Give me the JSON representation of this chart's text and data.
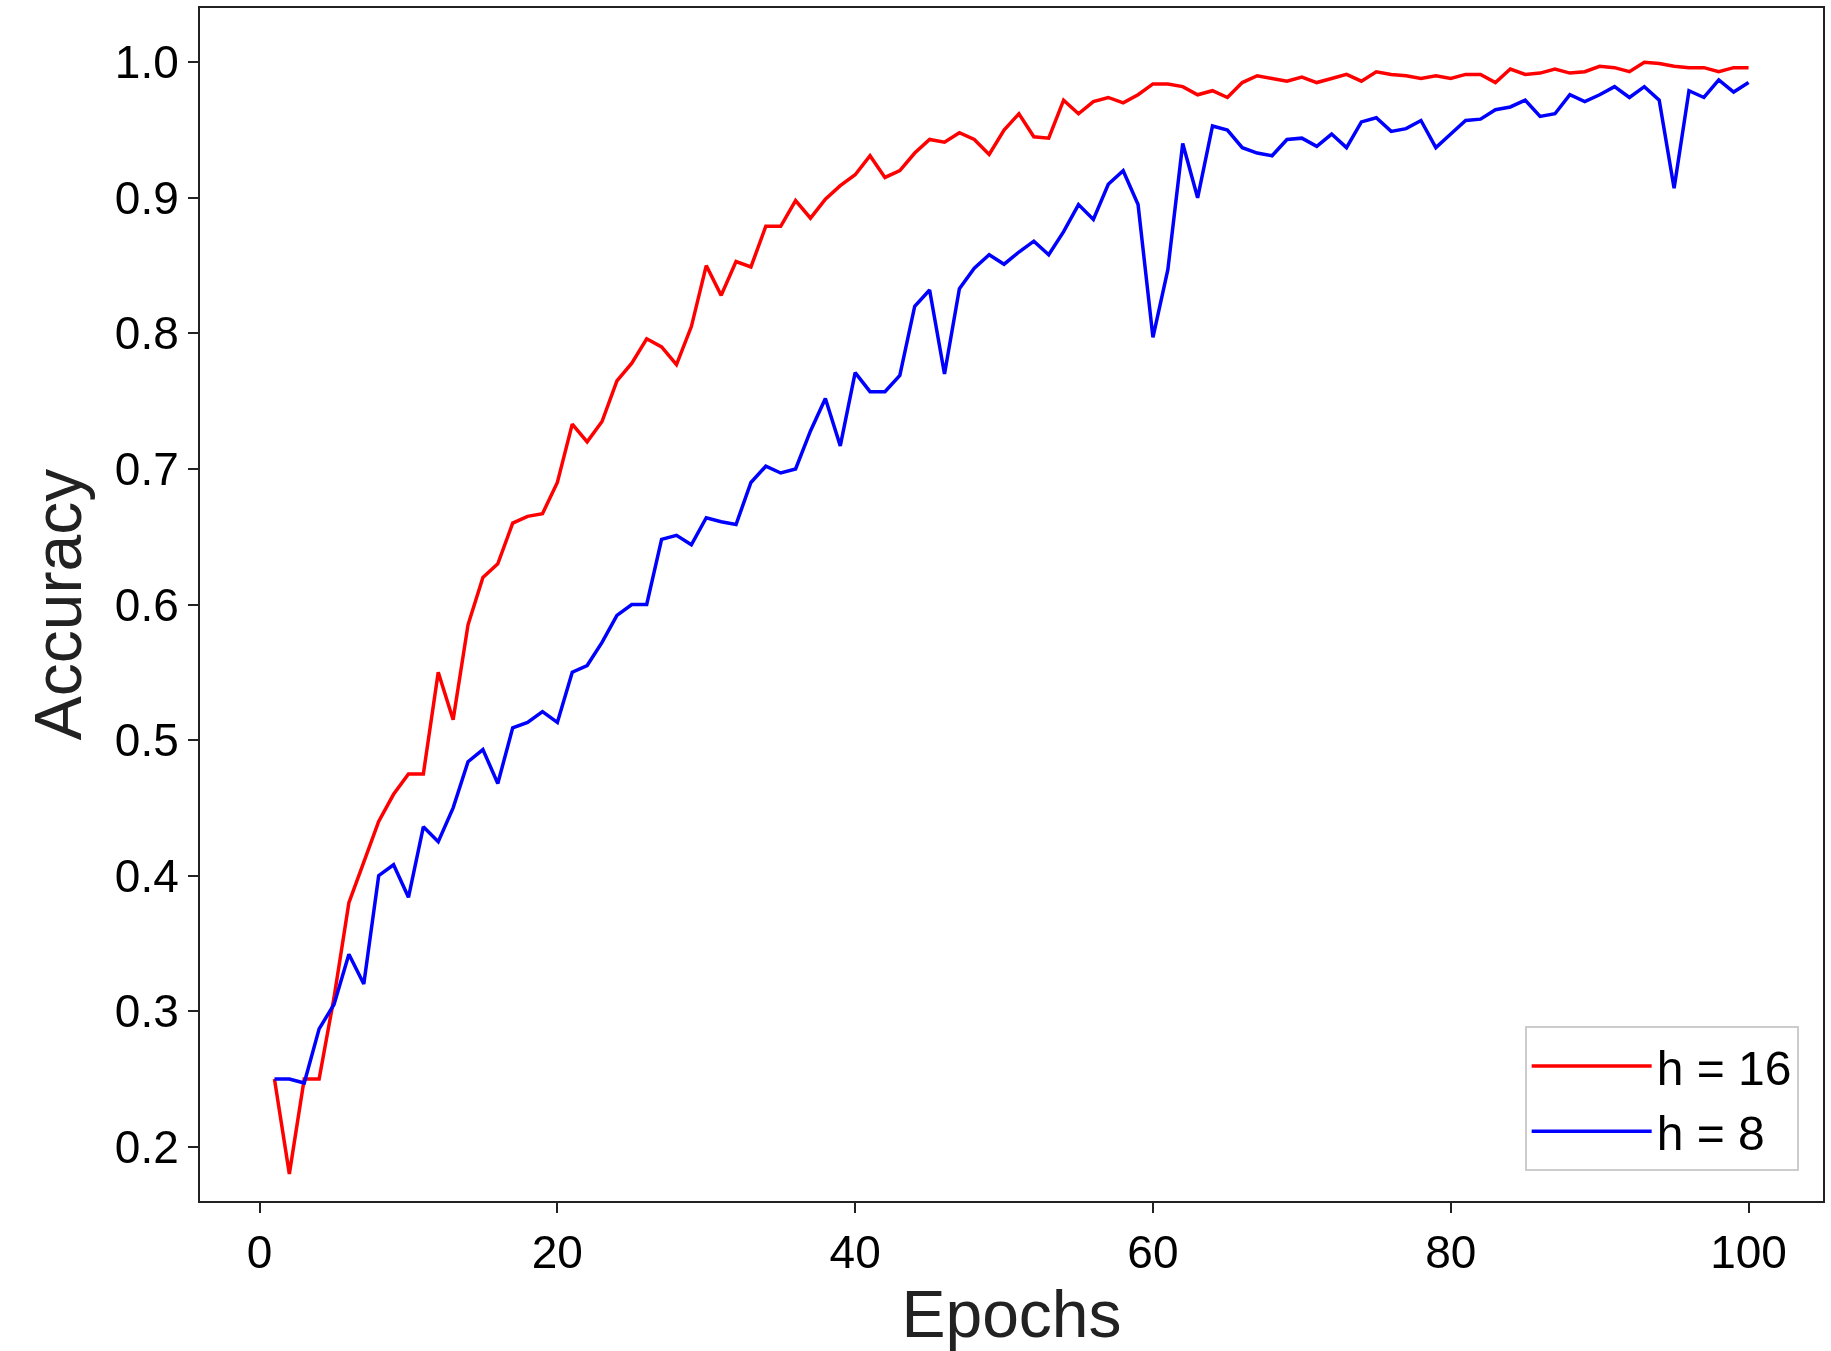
{
  "chart_data": {
    "type": "line",
    "xlabel": "Epochs",
    "ylabel": "Accuracy",
    "x": [
      1,
      2,
      3,
      4,
      5,
      6,
      7,
      8,
      9,
      10,
      11,
      12,
      13,
      14,
      15,
      16,
      17,
      18,
      19,
      20,
      21,
      22,
      23,
      24,
      25,
      26,
      27,
      28,
      29,
      30,
      31,
      32,
      33,
      34,
      35,
      36,
      37,
      38,
      39,
      40,
      41,
      42,
      43,
      44,
      45,
      46,
      47,
      48,
      49,
      50,
      51,
      52,
      53,
      54,
      55,
      56,
      57,
      58,
      59,
      60,
      61,
      62,
      63,
      64,
      65,
      66,
      67,
      68,
      69,
      70,
      71,
      72,
      73,
      74,
      75,
      76,
      77,
      78,
      79,
      80,
      81,
      82,
      83,
      84,
      85,
      86,
      87,
      88,
      89,
      90,
      91,
      92,
      93,
      94,
      95,
      96,
      97,
      98,
      99,
      100
    ],
    "series": [
      {
        "name": "h = 16",
        "color": "#ff0000",
        "values": [
          0.25,
          0.18,
          0.25,
          0.25,
          0.31,
          0.38,
          0.41,
          0.44,
          0.46,
          0.475,
          0.475,
          0.55,
          0.515,
          0.585,
          0.62,
          0.63,
          0.66,
          0.665,
          0.667,
          0.69,
          0.733,
          0.72,
          0.735,
          0.765,
          0.778,
          0.796,
          0.79,
          0.777,
          0.805,
          0.85,
          0.828,
          0.853,
          0.849,
          0.879,
          0.879,
          0.898,
          0.885,
          0.899,
          0.909,
          0.917,
          0.931,
          0.915,
          0.92,
          0.933,
          0.943,
          0.941,
          0.948,
          0.943,
          0.932,
          0.95,
          0.962,
          0.945,
          0.944,
          0.972,
          0.962,
          0.971,
          0.974,
          0.97,
          0.976,
          0.984,
          0.984,
          0.982,
          0.976,
          0.979,
          0.974,
          0.985,
          0.99,
          0.988,
          0.986,
          0.989,
          0.985,
          0.988,
          0.991,
          0.986,
          0.993,
          0.991,
          0.99,
          0.988,
          0.99,
          0.988,
          0.991,
          0.991,
          0.985,
          0.995,
          0.991,
          0.992,
          0.995,
          0.992,
          0.993,
          0.997,
          0.996,
          0.993,
          1.0,
          0.999,
          0.997,
          0.996,
          0.996,
          0.993,
          0.996,
          0.996
        ]
      },
      {
        "name": "h = 8",
        "color": "#0000ff",
        "values": [
          0.25,
          0.25,
          0.247,
          0.287,
          0.305,
          0.342,
          0.32,
          0.4,
          0.408,
          0.384,
          0.436,
          0.425,
          0.45,
          0.484,
          0.493,
          0.468,
          0.509,
          0.513,
          0.521,
          0.513,
          0.55,
          0.555,
          0.572,
          0.592,
          0.6,
          0.6,
          0.648,
          0.651,
          0.644,
          0.664,
          0.661,
          0.659,
          0.69,
          0.702,
          0.697,
          0.7,
          0.728,
          0.752,
          0.717,
          0.771,
          0.757,
          0.757,
          0.769,
          0.82,
          0.832,
          0.77,
          0.833,
          0.848,
          0.858,
          0.851,
          0.86,
          0.868,
          0.858,
          0.875,
          0.895,
          0.884,
          0.91,
          0.92,
          0.895,
          0.797,
          0.847,
          0.94,
          0.9,
          0.953,
          0.95,
          0.937,
          0.933,
          0.931,
          0.943,
          0.944,
          0.938,
          0.947,
          0.937,
          0.956,
          0.959,
          0.949,
          0.951,
          0.957,
          0.937,
          0.947,
          0.957,
          0.958,
          0.965,
          0.967,
          0.972,
          0.96,
          0.962,
          0.976,
          0.971,
          0.976,
          0.982,
          0.974,
          0.982,
          0.972,
          0.907,
          0.979,
          0.974,
          0.987,
          0.978,
          0.985
        ]
      }
    ],
    "xlim": [
      -4,
      105
    ],
    "xticks": [
      0,
      20,
      40,
      60,
      80,
      100
    ],
    "ylim": [
      0.16,
      1.04
    ],
    "yticks": [
      {
        "value": 0.2,
        "label": "0.2"
      },
      {
        "value": 0.3,
        "label": "0.3"
      },
      {
        "value": 0.4,
        "label": "0.4"
      },
      {
        "value": 0.5,
        "label": "0.5"
      },
      {
        "value": 0.6,
        "label": "0.6"
      },
      {
        "value": 0.7,
        "label": "0.7"
      },
      {
        "value": 0.8,
        "label": "0.8"
      },
      {
        "value": 0.9,
        "label": "0.9"
      },
      {
        "value": 1.0,
        "label": "1.0"
      }
    ],
    "grid": false,
    "legend": "bottom right",
    "marker": "none",
    "line_style": "solid"
  }
}
